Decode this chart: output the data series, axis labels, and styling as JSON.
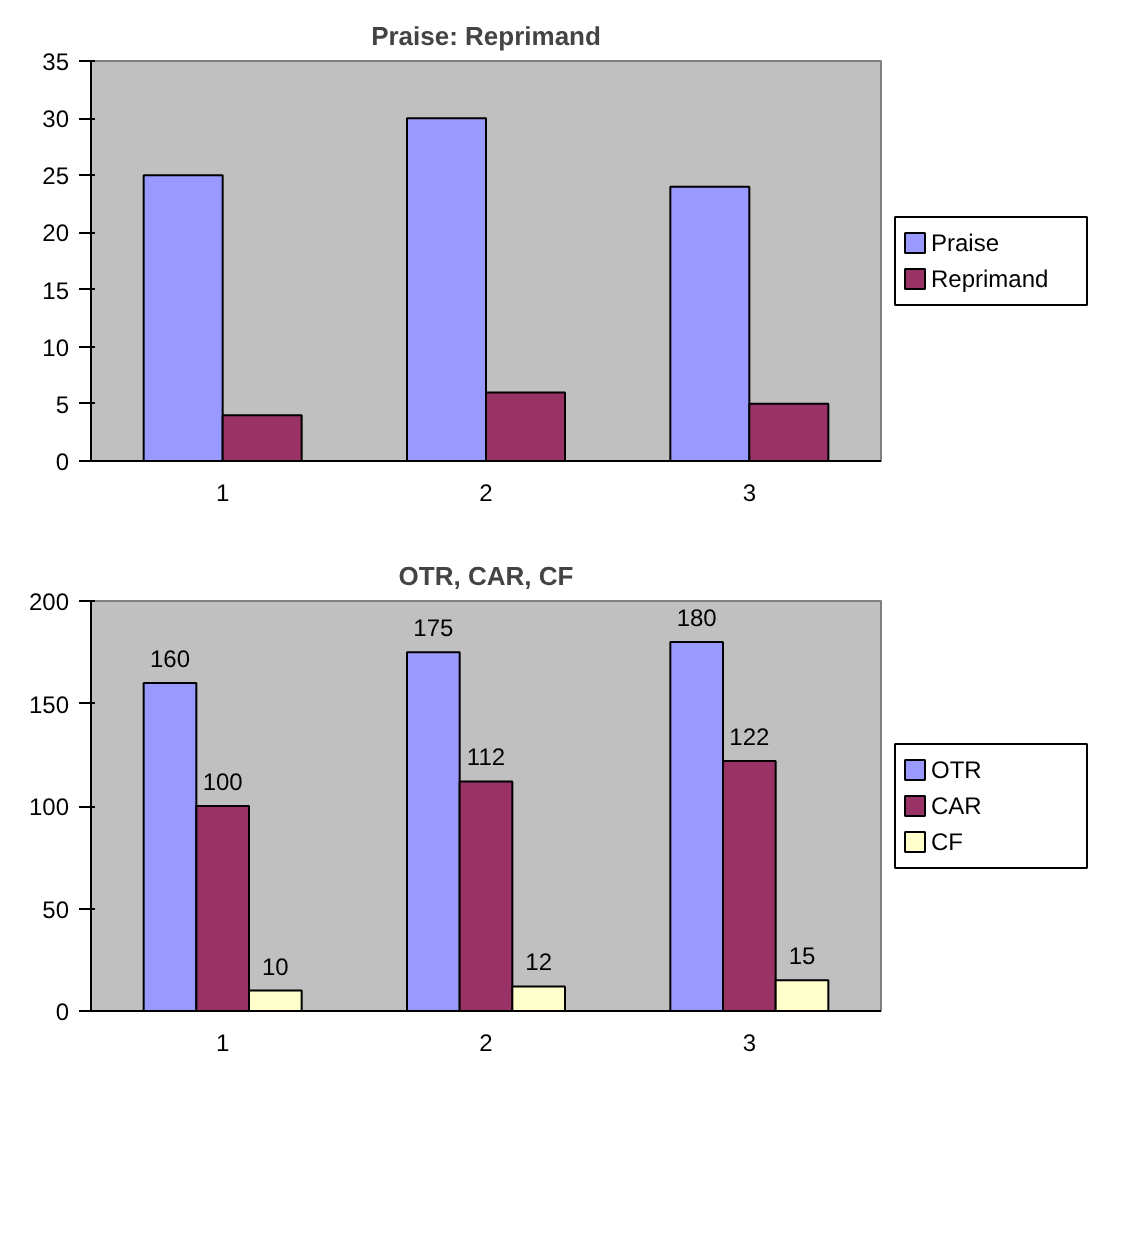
{
  "chart_data": [
    {
      "type": "bar",
      "title": "Praise: Reprimand",
      "categories": [
        "1",
        "2",
        "3"
      ],
      "ylim": [
        0,
        35
      ],
      "yticks": [
        0,
        5,
        10,
        15,
        20,
        25,
        30,
        35
      ],
      "grid": false,
      "legend": "right",
      "series": [
        {
          "name": "Praise",
          "color": "#9999ff",
          "values": [
            25,
            30,
            24
          ]
        },
        {
          "name": "Reprimand",
          "color": "#993366",
          "values": [
            4,
            6,
            5
          ]
        }
      ]
    },
    {
      "type": "bar",
      "title": "OTR, CAR, CF",
      "categories": [
        "1",
        "2",
        "3"
      ],
      "ylim": [
        0,
        200
      ],
      "yticks": [
        0,
        50,
        100,
        150,
        200
      ],
      "grid": false,
      "legend": "right",
      "data_labels": true,
      "series": [
        {
          "name": "OTR",
          "color": "#9999ff",
          "values": [
            160,
            175,
            180
          ]
        },
        {
          "name": "CAR",
          "color": "#993366",
          "values": [
            100,
            112,
            122
          ]
        },
        {
          "name": "CF",
          "color": "#ffffcc",
          "values": [
            10,
            12,
            15
          ]
        }
      ]
    }
  ]
}
